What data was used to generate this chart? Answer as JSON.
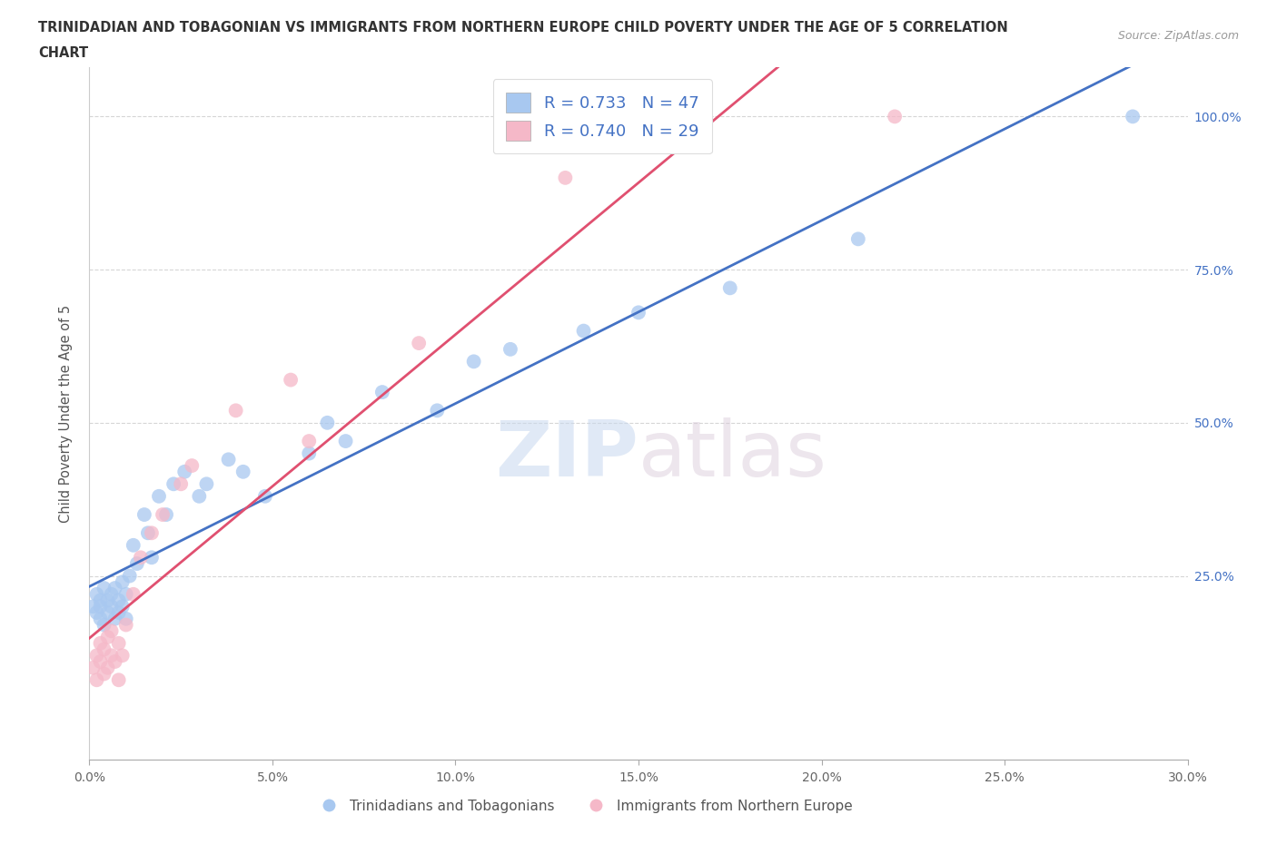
{
  "title_line1": "TRINIDADIAN AND TOBAGONIAN VS IMMIGRANTS FROM NORTHERN EUROPE CHILD POVERTY UNDER THE AGE OF 5 CORRELATION",
  "title_line2": "CHART",
  "source": "Source: ZipAtlas.com",
  "ylabel": "Child Poverty Under the Age of 5",
  "legend_label1": "Trinidadians and Tobagonians",
  "legend_label2": "Immigrants from Northern Europe",
  "R1": 0.733,
  "N1": 47,
  "R2": 0.74,
  "N2": 29,
  "color1": "#a8c8f0",
  "color2": "#f5b8c8",
  "line_color1": "#4472c4",
  "line_color2": "#e05070",
  "watermark_text": "ZIPatlas",
  "xlim": [
    0.0,
    0.3
  ],
  "ylim": [
    -0.05,
    1.08
  ],
  "xticks": [
    0.0,
    0.05,
    0.1,
    0.15,
    0.2,
    0.25,
    0.3
  ],
  "yticks": [
    0.25,
    0.5,
    0.75,
    1.0
  ],
  "blue_x": [
    0.001,
    0.002,
    0.002,
    0.003,
    0.003,
    0.003,
    0.004,
    0.004,
    0.005,
    0.005,
    0.006,
    0.006,
    0.007,
    0.007,
    0.008,
    0.008,
    0.009,
    0.009,
    0.01,
    0.01,
    0.011,
    0.012,
    0.013,
    0.015,
    0.016,
    0.017,
    0.019,
    0.021,
    0.023,
    0.026,
    0.03,
    0.032,
    0.038,
    0.042,
    0.048,
    0.06,
    0.065,
    0.07,
    0.08,
    0.095,
    0.105,
    0.115,
    0.135,
    0.15,
    0.175,
    0.21,
    0.285
  ],
  "blue_y": [
    0.2,
    0.19,
    0.22,
    0.18,
    0.21,
    0.2,
    0.17,
    0.23,
    0.19,
    0.21,
    0.22,
    0.2,
    0.18,
    0.23,
    0.21,
    0.19,
    0.2,
    0.24,
    0.18,
    0.22,
    0.25,
    0.3,
    0.27,
    0.35,
    0.32,
    0.28,
    0.38,
    0.35,
    0.4,
    0.42,
    0.38,
    0.4,
    0.44,
    0.42,
    0.38,
    0.45,
    0.5,
    0.47,
    0.55,
    0.52,
    0.6,
    0.62,
    0.65,
    0.68,
    0.72,
    0.8,
    1.0
  ],
  "pink_x": [
    0.001,
    0.002,
    0.002,
    0.003,
    0.003,
    0.004,
    0.004,
    0.005,
    0.005,
    0.006,
    0.006,
    0.007,
    0.008,
    0.008,
    0.009,
    0.01,
    0.012,
    0.014,
    0.017,
    0.02,
    0.025,
    0.028,
    0.04,
    0.055,
    0.06,
    0.09,
    0.13,
    0.15,
    0.22
  ],
  "pink_y": [
    0.1,
    0.12,
    0.08,
    0.11,
    0.14,
    0.09,
    0.13,
    0.1,
    0.15,
    0.12,
    0.16,
    0.11,
    0.14,
    0.08,
    0.12,
    0.17,
    0.22,
    0.28,
    0.32,
    0.35,
    0.4,
    0.43,
    0.52,
    0.57,
    0.47,
    0.63,
    0.9,
    0.97,
    1.0
  ]
}
